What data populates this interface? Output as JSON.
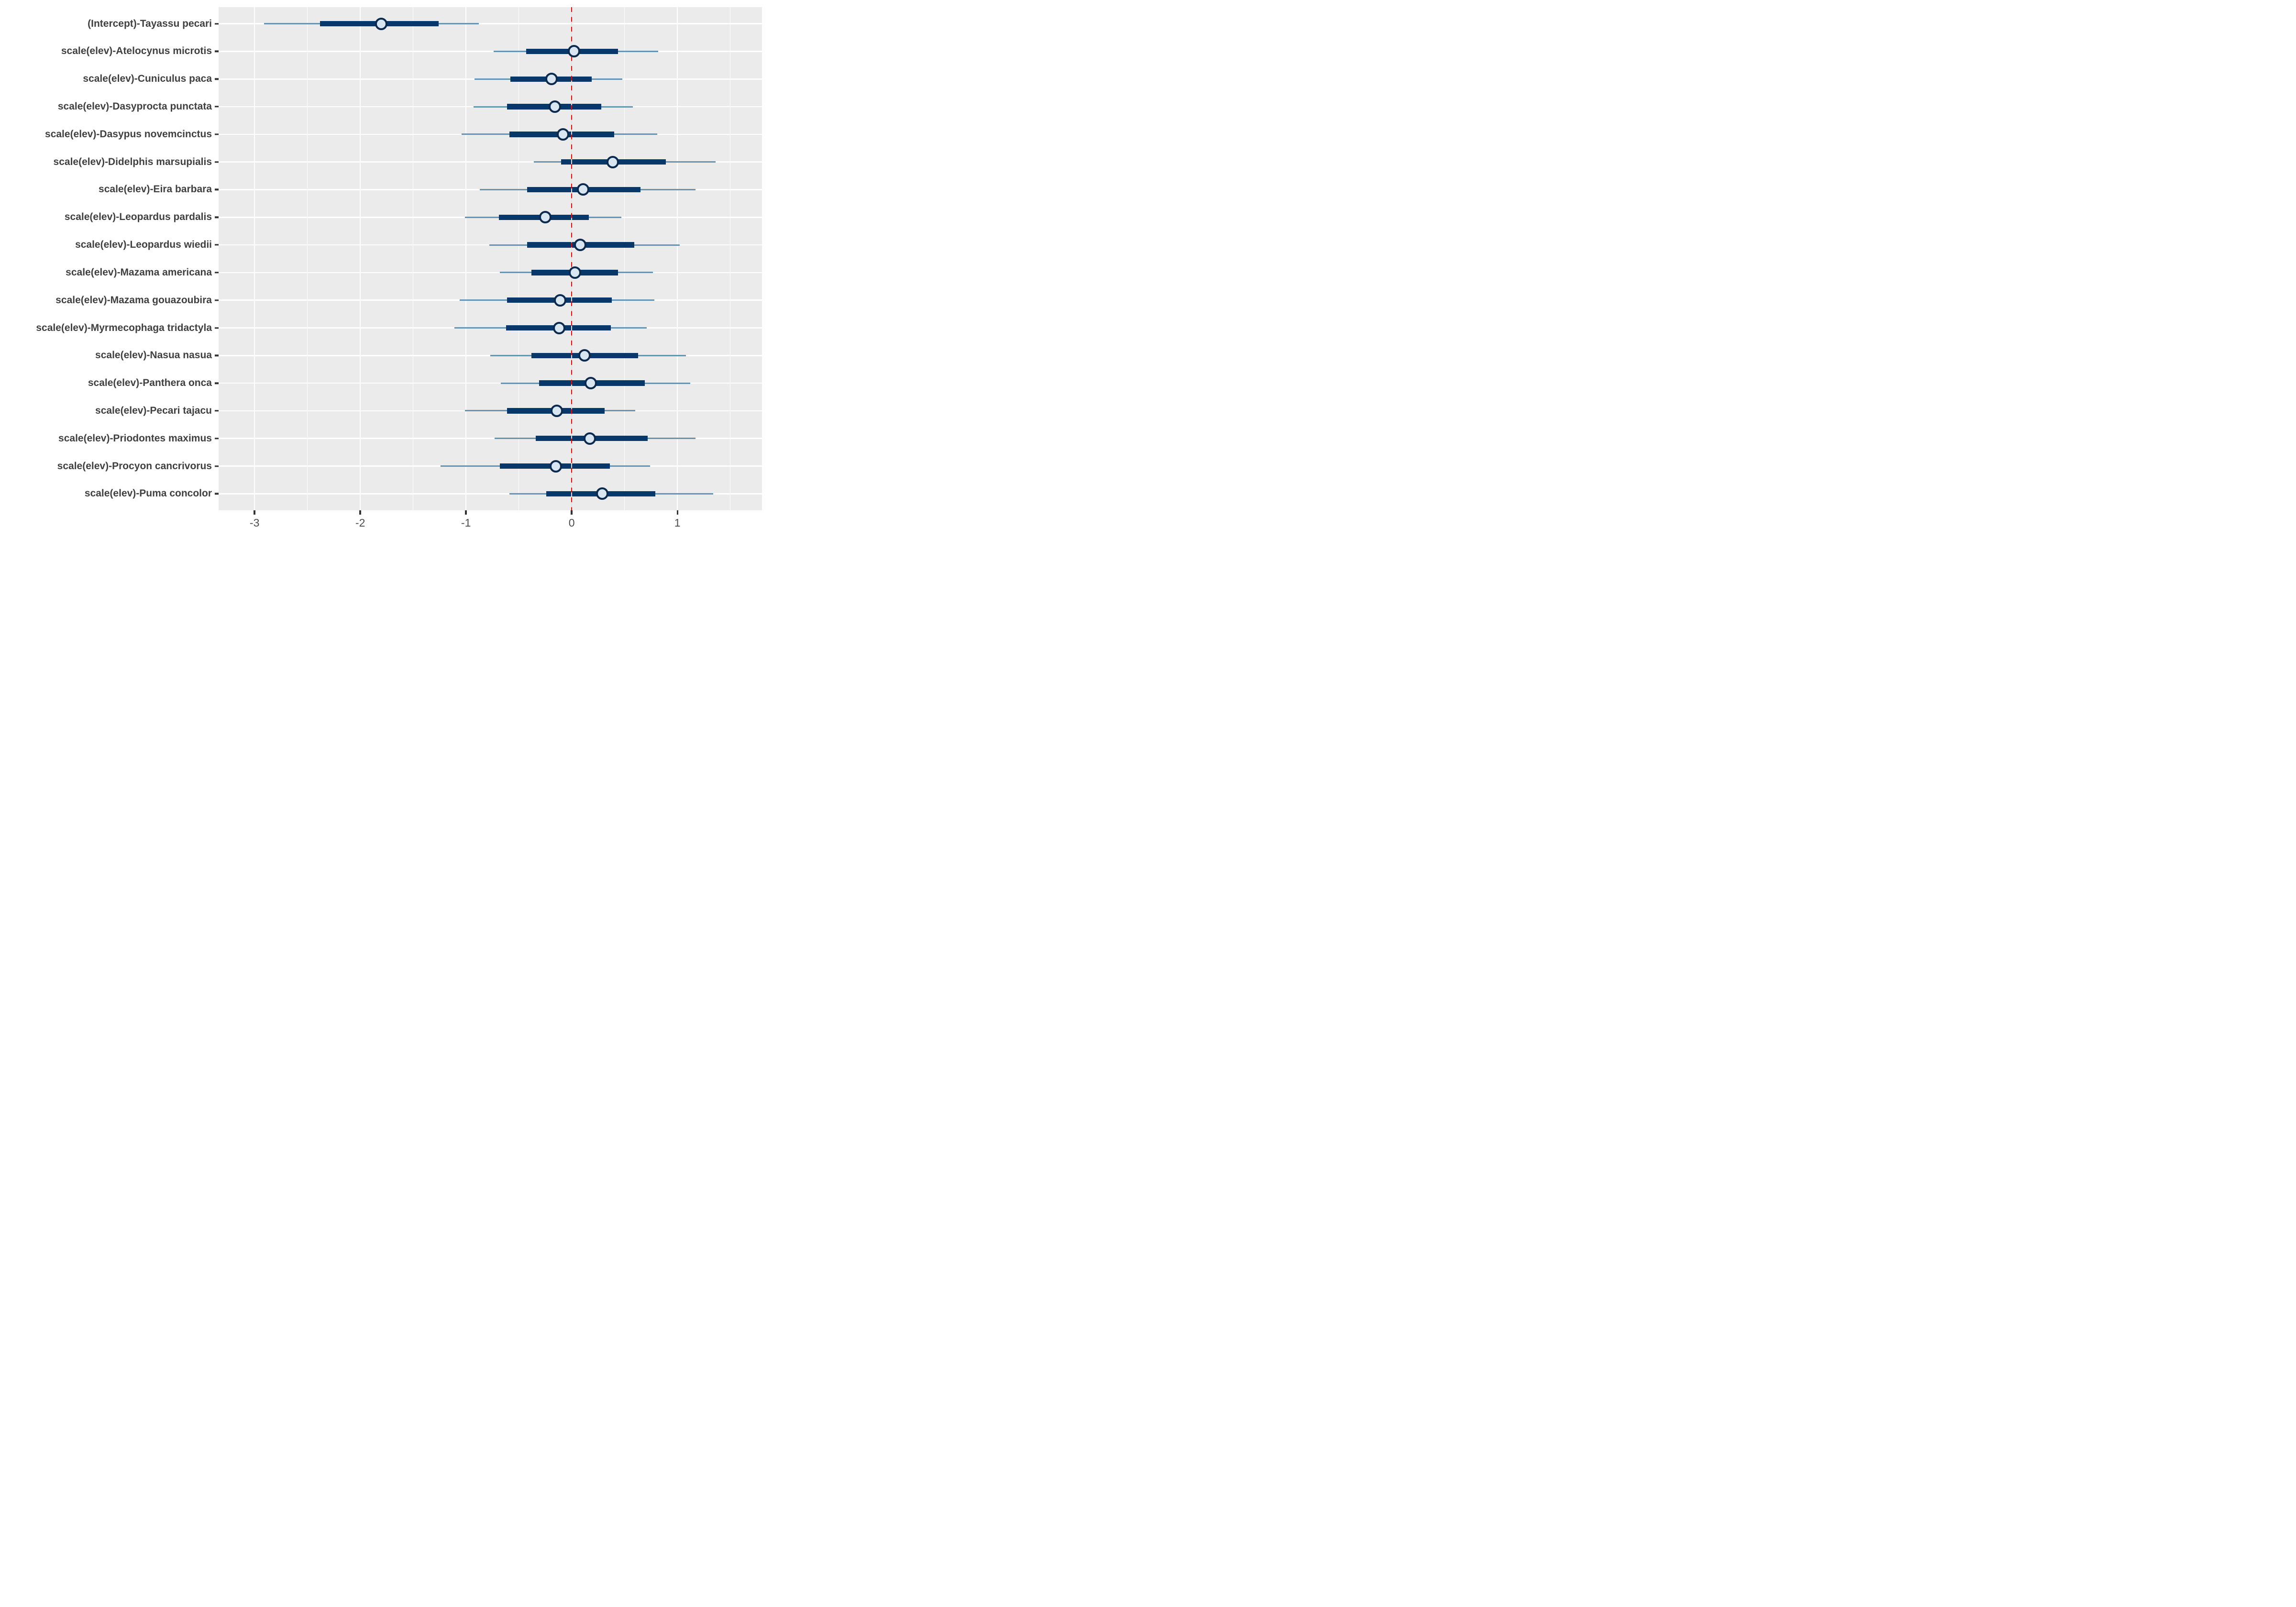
{
  "chart_data": {
    "type": "scatter",
    "subtype": "forest-plot",
    "title": "",
    "xlabel": "",
    "ylabel": "",
    "xlim": [
      -3.34,
      1.8
    ],
    "x_ticks": [
      -3,
      -2,
      -1,
      0,
      1
    ],
    "x_tick_labels": [
      "-3",
      "-2",
      "-1",
      "0",
      "1"
    ],
    "x_minor_ticks": [
      -2.5,
      -1.5,
      -0.5,
      0.5,
      1.5
    ],
    "grid": "on",
    "legend": "none",
    "vline": {
      "x": 0,
      "style": "dashed",
      "color": "#FF0000"
    },
    "rows": [
      {
        "label": "(Intercept)-Tayassu pecari",
        "outer": [
          -2.91,
          -0.88
        ],
        "inner": [
          -2.38,
          -1.26
        ],
        "estimate": -1.8
      },
      {
        "label": "scale(elev)-Atelocynus microtis",
        "outer": [
          -0.74,
          0.82
        ],
        "inner": [
          -0.43,
          0.44
        ],
        "estimate": 0.02
      },
      {
        "label": "scale(elev)-Cuniculus paca",
        "outer": [
          -0.92,
          0.48
        ],
        "inner": [
          -0.58,
          0.19
        ],
        "estimate": -0.19
      },
      {
        "label": "scale(elev)-Dasyprocta punctata",
        "outer": [
          -0.93,
          0.58
        ],
        "inner": [
          -0.61,
          0.28
        ],
        "estimate": -0.16
      },
      {
        "label": "scale(elev)-Dasypus novemcinctus",
        "outer": [
          -1.04,
          0.81
        ],
        "inner": [
          -0.59,
          0.4
        ],
        "estimate": -0.08
      },
      {
        "label": "scale(elev)-Didelphis marsupialis",
        "outer": [
          -0.36,
          1.36
        ],
        "inner": [
          -0.1,
          0.89
        ],
        "estimate": 0.39
      },
      {
        "label": "scale(elev)-Eira barbara",
        "outer": [
          -0.87,
          1.17
        ],
        "inner": [
          -0.42,
          0.65
        ],
        "estimate": 0.11
      },
      {
        "label": "scale(elev)-Leopardus pardalis",
        "outer": [
          -1.01,
          0.47
        ],
        "inner": [
          -0.69,
          0.16
        ],
        "estimate": -0.25
      },
      {
        "label": "scale(elev)-Leopardus wiedii",
        "outer": [
          -0.78,
          1.02
        ],
        "inner": [
          -0.42,
          0.59
        ],
        "estimate": 0.08
      },
      {
        "label": "scale(elev)-Mazama americana",
        "outer": [
          -0.68,
          0.77
        ],
        "inner": [
          -0.38,
          0.44
        ],
        "estimate": 0.03
      },
      {
        "label": "scale(elev)-Mazama gouazoubira",
        "outer": [
          -1.06,
          0.78
        ],
        "inner": [
          -0.61,
          0.38
        ],
        "estimate": -0.11
      },
      {
        "label": "scale(elev)-Myrmecophaga tridactyla",
        "outer": [
          -1.11,
          0.71
        ],
        "inner": [
          -0.62,
          0.37
        ],
        "estimate": -0.12
      },
      {
        "label": "scale(elev)-Nasua nasua",
        "outer": [
          -0.77,
          1.08
        ],
        "inner": [
          -0.38,
          0.63
        ],
        "estimate": 0.12
      },
      {
        "label": "scale(elev)-Panthera onca",
        "outer": [
          -0.67,
          1.12
        ],
        "inner": [
          -0.31,
          0.69
        ],
        "estimate": 0.18
      },
      {
        "label": "scale(elev)-Pecari tajacu",
        "outer": [
          -1.01,
          0.6
        ],
        "inner": [
          -0.61,
          0.31
        ],
        "estimate": -0.14
      },
      {
        "label": "scale(elev)-Priodontes maximus",
        "outer": [
          -0.73,
          1.17
        ],
        "inner": [
          -0.34,
          0.72
        ],
        "estimate": 0.17
      },
      {
        "label": "scale(elev)-Procyon cancrivorus",
        "outer": [
          -1.24,
          0.74
        ],
        "inner": [
          -0.68,
          0.36
        ],
        "estimate": -0.15
      },
      {
        "label": "scale(elev)-Puma concolor",
        "outer": [
          -0.59,
          1.34
        ],
        "inner": [
          -0.24,
          0.79
        ],
        "estimate": 0.29
      }
    ]
  },
  "colors": {
    "panel_background": "#EBEBEB",
    "grid": "#FFFFFF",
    "zero_gridline_base": "#E2E2E2",
    "outer_interval": "#6795B4",
    "inner_interval": "#08386A",
    "point_fill": "#D8E6F2",
    "point_stroke": "#0C2A4E",
    "reference_line": "#FF0000",
    "axis_text": "#4D4D4D",
    "y_label_text": "#404040",
    "tick_mark": "#333333"
  }
}
